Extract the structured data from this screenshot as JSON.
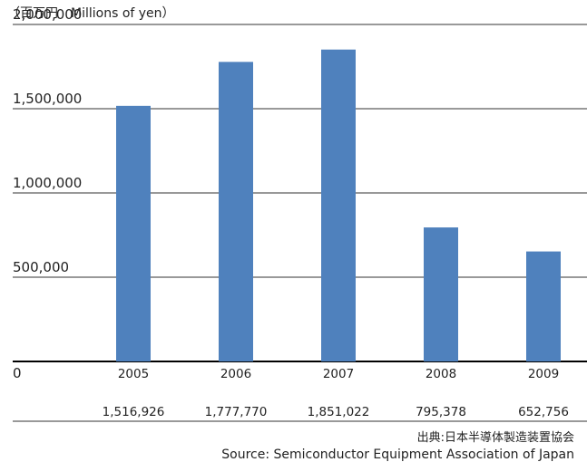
{
  "unit_label": "（百万円　Millions of yen）",
  "source_jp": "出典:日本半導体製造装置協会",
  "source_en": "Source: Semiconductor Equipment Association of Japan",
  "colors": {
    "bar": "#4f81bd",
    "grid": "#333333",
    "baseline": "#000000"
  },
  "chart_data": {
    "type": "bar",
    "title": "",
    "xlabel": "",
    "ylabel": "（百万円　Millions of yen）",
    "ylim": [
      0,
      2000000
    ],
    "yticks": [
      {
        "value": 2000000,
        "label": "2,000,000"
      },
      {
        "value": 1500000,
        "label": "1,500,000"
      },
      {
        "value": 1000000,
        "label": "1,000,000"
      },
      {
        "value": 500000,
        "label": "500,000"
      },
      {
        "value": 0,
        "label": "0"
      }
    ],
    "grid": true,
    "categories": [
      "2005",
      "2006",
      "2007",
      "2008",
      "2009"
    ],
    "values": [
      1516926,
      1777770,
      1851022,
      795378,
      652756
    ],
    "value_labels": [
      "1,516,926",
      "1,777,770",
      "1,851,022",
      "795,378",
      "652,756"
    ]
  }
}
